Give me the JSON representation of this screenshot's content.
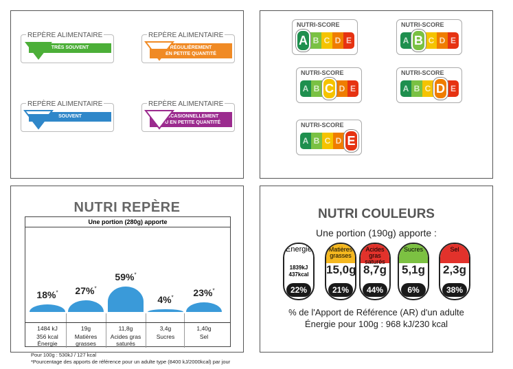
{
  "repere_alimentaire": {
    "title": "REPÈRE ALIMENTAIRE",
    "items": [
      {
        "label": "TRÈS SOUVENT",
        "color": "#4caf38"
      },
      {
        "label_line1": "RÉGULIÈREMENT",
        "label_line2": "EN PETITE QUANTITÉ",
        "color": "#f08a24"
      },
      {
        "label": "SOUVENT",
        "color": "#2f87c9"
      },
      {
        "label_line1": "OCCASIONNELLEMENT",
        "label_line2": "OU EN PETITE QUANTITÉ",
        "color": "#9b2b8e"
      }
    ]
  },
  "nutri_score": {
    "title": "NUTRI-SCORE",
    "letters": [
      "A",
      "B",
      "C",
      "D",
      "E"
    ],
    "colors": [
      "#1e8f4e",
      "#7ac143",
      "#f5c300",
      "#ef7d00",
      "#e63312"
    ],
    "variants": [
      "A",
      "B",
      "C",
      "D",
      "E"
    ]
  },
  "nutri_repere": {
    "title": "NUTRI REPÈRE",
    "portion": "Une portion (280g) apporte",
    "columns": [
      {
        "pct": "18%",
        "star": "*",
        "value": "1484 kJ",
        "value2": "356 kcal",
        "label": "Énergie",
        "level": 18
      },
      {
        "pct": "27%",
        "star": "*",
        "value": "19g",
        "label": "Matières",
        "label2": "grasses",
        "level": 27
      },
      {
        "pct": "59%",
        "star": "*",
        "value": "11,8g",
        "label": "Acides gras",
        "label2": "saturés",
        "level": 59
      },
      {
        "pct": "4%",
        "star": "*",
        "value": "3,4g",
        "label": "Sucres",
        "level": 4
      },
      {
        "pct": "23%",
        "star": "*",
        "value": "1,40g",
        "label": "Sel",
        "level": 23
      }
    ],
    "foot1": "Pour 100g  : 530kJ / 127 kcal",
    "foot2": "*Pourcentage des apports de référence pour un adulte type (8400 kJ/2000kcal) par jour"
  },
  "nutri_couleurs": {
    "title": "NUTRI COULEURS",
    "portion": "Une portion (190g) apporte :",
    "items": [
      {
        "head": "Énergie",
        "v1": "1839kJ",
        "v2": "437kcal",
        "pct": "22%",
        "color": "#ffffff"
      },
      {
        "head": "Matières grasses",
        "value": "15,0g",
        "pct": "21%",
        "color": "#f5b820"
      },
      {
        "head": "Acides gras saturés",
        "value": "8,7g",
        "pct": "44%",
        "color": "#e2322b"
      },
      {
        "head": "Sucres",
        "value": "5,1g",
        "pct": "6%",
        "color": "#7cc142"
      },
      {
        "head": "Sel",
        "value": "2,3g",
        "pct": "38%",
        "color": "#e2322b"
      }
    ],
    "ar_line": "% de l'Apport de Référence (AR) d'un adulte",
    "energy_100g": "Énergie pour 100g : 968 kJ/230 kcal"
  }
}
